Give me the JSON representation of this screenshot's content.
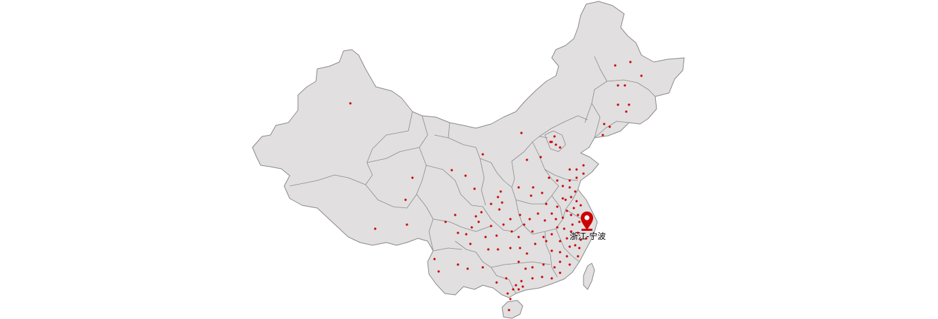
{
  "map": {
    "land_color": "#e1dfe0",
    "border_color": "#888888",
    "dot_color": "#cc0000",
    "pin_color": "#cc0000",
    "marker": {
      "icon": "map-pin-icon",
      "label": "浙江-宁波"
    }
  }
}
